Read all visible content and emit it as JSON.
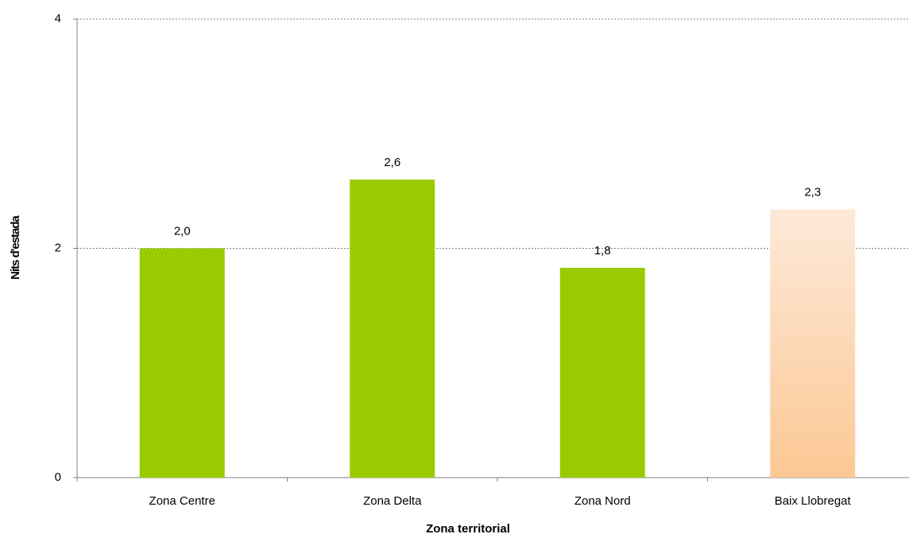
{
  "chart_data": {
    "type": "bar",
    "x_label": "Zona territorial",
    "y_label": "Nits d'estada",
    "categories": [
      "Zona Centre",
      "Zona Delta",
      "Zona Nord",
      "Baix Llobregat"
    ],
    "values": [
      2.0,
      2.6,
      1.83,
      2.34
    ],
    "value_labels": [
      "2,0",
      "2,6",
      "1,8",
      "2,3"
    ],
    "colors": [
      "#99cc00",
      "#99cc00",
      "#99cc00",
      [
        "#fde9d9",
        "#fcc894"
      ]
    ],
    "ylim": [
      0,
      4
    ],
    "yticks": [
      0,
      2,
      4
    ],
    "grid": true
  }
}
